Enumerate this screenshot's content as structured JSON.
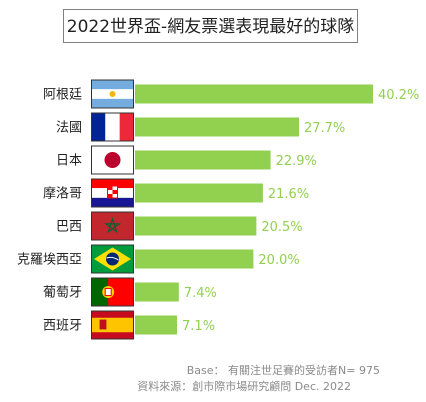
{
  "chart_data": {
    "type": "bar",
    "orientation": "horizontal",
    "title": "2022世界盃-網友票選表現最好的球隊",
    "categories": [
      "阿根廷",
      "法國",
      "日本",
      "摩洛哥",
      "巴西",
      "克羅埃西亞",
      "葡萄牙",
      "西班牙"
    ],
    "values": [
      40.2,
      27.7,
      22.9,
      21.6,
      20.5,
      20.0,
      7.4,
      7.1
    ],
    "value_labels": [
      "40.2%",
      "27.7%",
      "22.9%",
      "21.6%",
      "20.5%",
      "20.0%",
      "7.4%",
      "7.1%"
    ],
    "flags": [
      "argentina-flag",
      "france-flag",
      "japan-flag",
      "croatia-flag",
      "morocco-flag",
      "brazil-flag",
      "portugal-flag",
      "spain-flag"
    ],
    "xlim": [
      0,
      40.2
    ],
    "grid": false,
    "legend": "none",
    "colors": {
      "bar": "#92d050",
      "value_label": "#92d050"
    }
  },
  "footer": {
    "base": "Base： 有關注世足賽的受訪者N= 975",
    "source": "資料來源：創市際市場研究顧問 Dec. 2022"
  }
}
